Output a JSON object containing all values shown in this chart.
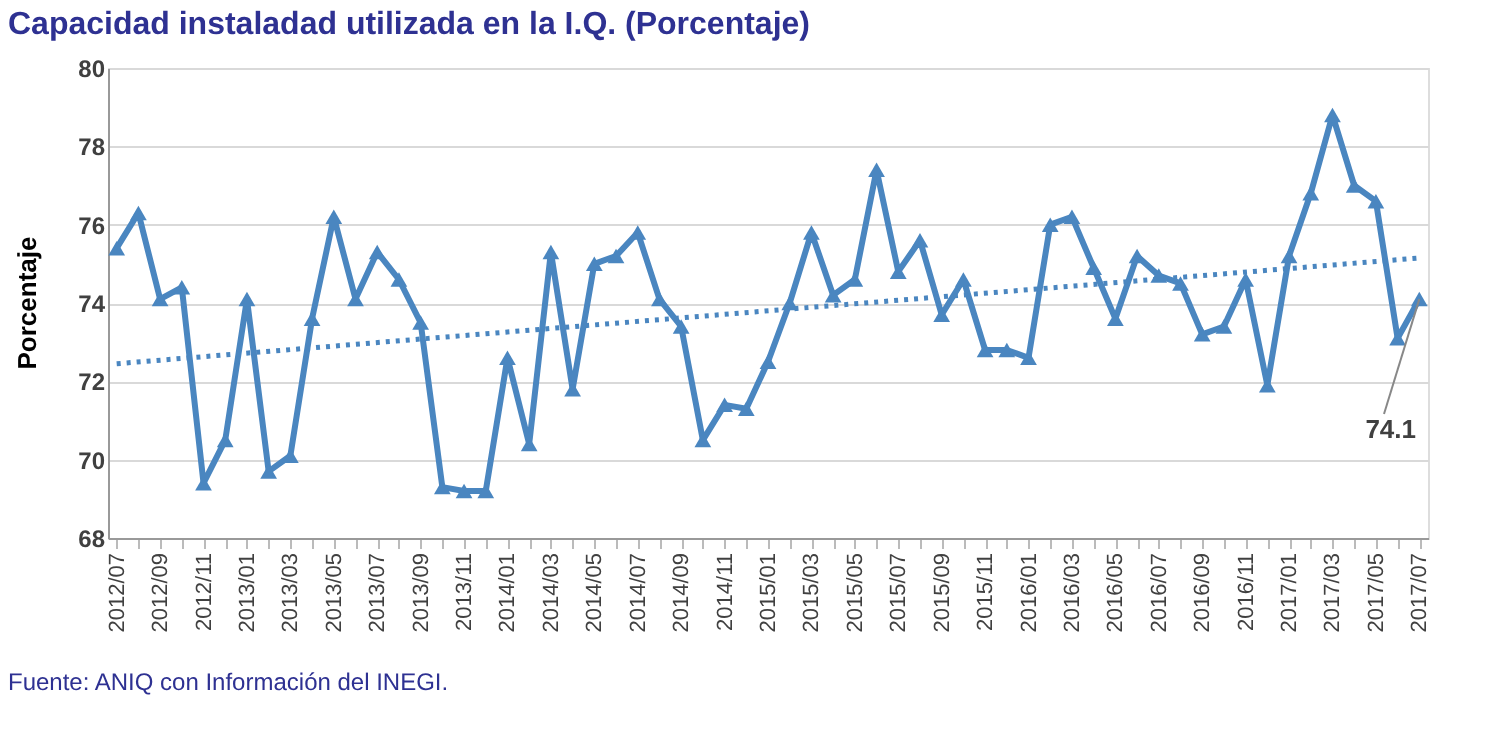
{
  "chart_data": {
    "type": "line",
    "title": "Capacidad instaladad utilizada en la I.Q. (Porcentaje)",
    "ylabel": "Porcentaje",
    "categories": [
      "2012/07",
      null,
      "2012/09",
      null,
      "2012/11",
      null,
      "2013/01",
      null,
      "2013/03",
      null,
      "2013/05",
      null,
      "2013/07",
      null,
      "2013/09",
      null,
      "2013/11",
      null,
      "2014/01",
      null,
      "2014/03",
      null,
      "2014/05",
      null,
      "2014/07",
      null,
      "2014/09",
      null,
      "2014/11",
      null,
      "2015/01",
      null,
      "2015/03",
      null,
      "2015/05",
      null,
      "2015/07",
      null,
      "2015/09",
      null,
      "2015/11",
      null,
      "2016/01",
      null,
      "2016/03",
      null,
      "2016/05",
      null,
      "2016/07",
      null,
      "2016/09",
      null,
      "2016/11",
      null,
      "2017/01",
      null,
      "2017/03",
      null,
      "2017/05",
      null,
      "2017/07"
    ],
    "series": [
      {
        "color": "#4a86c0",
        "values": [
          75.4,
          76.3,
          74.1,
          74.4,
          69.4,
          70.5,
          74.1,
          69.7,
          70.1,
          73.6,
          76.2,
          74.1,
          75.3,
          74.6,
          73.5,
          69.3,
          69.2,
          69.2,
          72.6,
          70.4,
          75.3,
          71.8,
          75.0,
          75.2,
          75.8,
          74.1,
          73.4,
          70.5,
          71.4,
          71.3,
          72.5,
          74.0,
          75.8,
          74.2,
          74.6,
          77.4,
          74.8,
          75.6,
          73.7,
          74.6,
          72.8,
          72.8,
          72.6,
          76.0,
          76.2,
          74.9,
          73.6,
          75.2,
          74.7,
          74.5,
          73.2,
          73.4,
          74.6,
          71.9,
          75.2,
          76.8,
          78.8,
          77.0,
          76.6,
          73.1,
          74.1
        ]
      },
      {
        "type": "line",
        "color": "#4a86c0",
        "x": [
          "2012/07",
          "2017/07"
        ],
        "values": [
          72.45,
          75.15
        ],
        "line_style": "dotted",
        "marker": "none"
      }
    ],
    "ylim": [
      68,
      80
    ],
    "yticks": [
      68,
      70,
      72,
      74,
      76,
      78,
      80
    ],
    "grid": "y",
    "marker": "triangle",
    "line_style": "solid",
    "annotations": [
      {
        "text": "74.1",
        "x": "2017/07",
        "y": 74.1
      },
      "Fuente: ANIQ con Información del INEGI."
    ]
  }
}
